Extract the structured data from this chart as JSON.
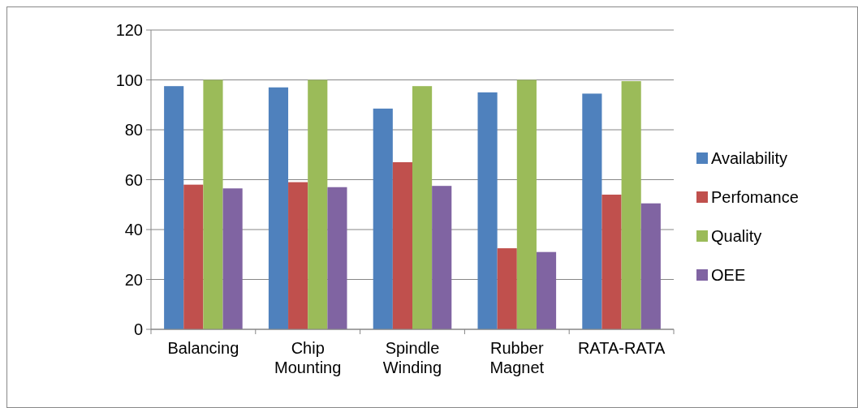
{
  "chart_data": {
    "type": "bar",
    "categories": [
      "Balancing",
      "Chip Mounting",
      "Spindle Winding",
      "Rubber Magnet",
      "RATA-RATA"
    ],
    "series": [
      {
        "name": "Availability",
        "color": "#4f81bd",
        "values": [
          97.5,
          97,
          88.5,
          95,
          94.5
        ]
      },
      {
        "name": "Perfomance",
        "color": "#c0504d",
        "values": [
          58,
          59,
          67,
          32.5,
          54
        ]
      },
      {
        "name": "Quality",
        "color": "#9bbb59",
        "values": [
          100,
          100,
          97.5,
          100,
          99.5
        ]
      },
      {
        "name": "OEE",
        "color": "#8064a2",
        "values": [
          56.5,
          57,
          57.5,
          31,
          50.5
        ]
      }
    ],
    "ylim": [
      0,
      120
    ],
    "yticks": [
      0,
      20,
      40,
      60,
      80,
      100,
      120
    ],
    "grid": "y",
    "legend": "right"
  }
}
